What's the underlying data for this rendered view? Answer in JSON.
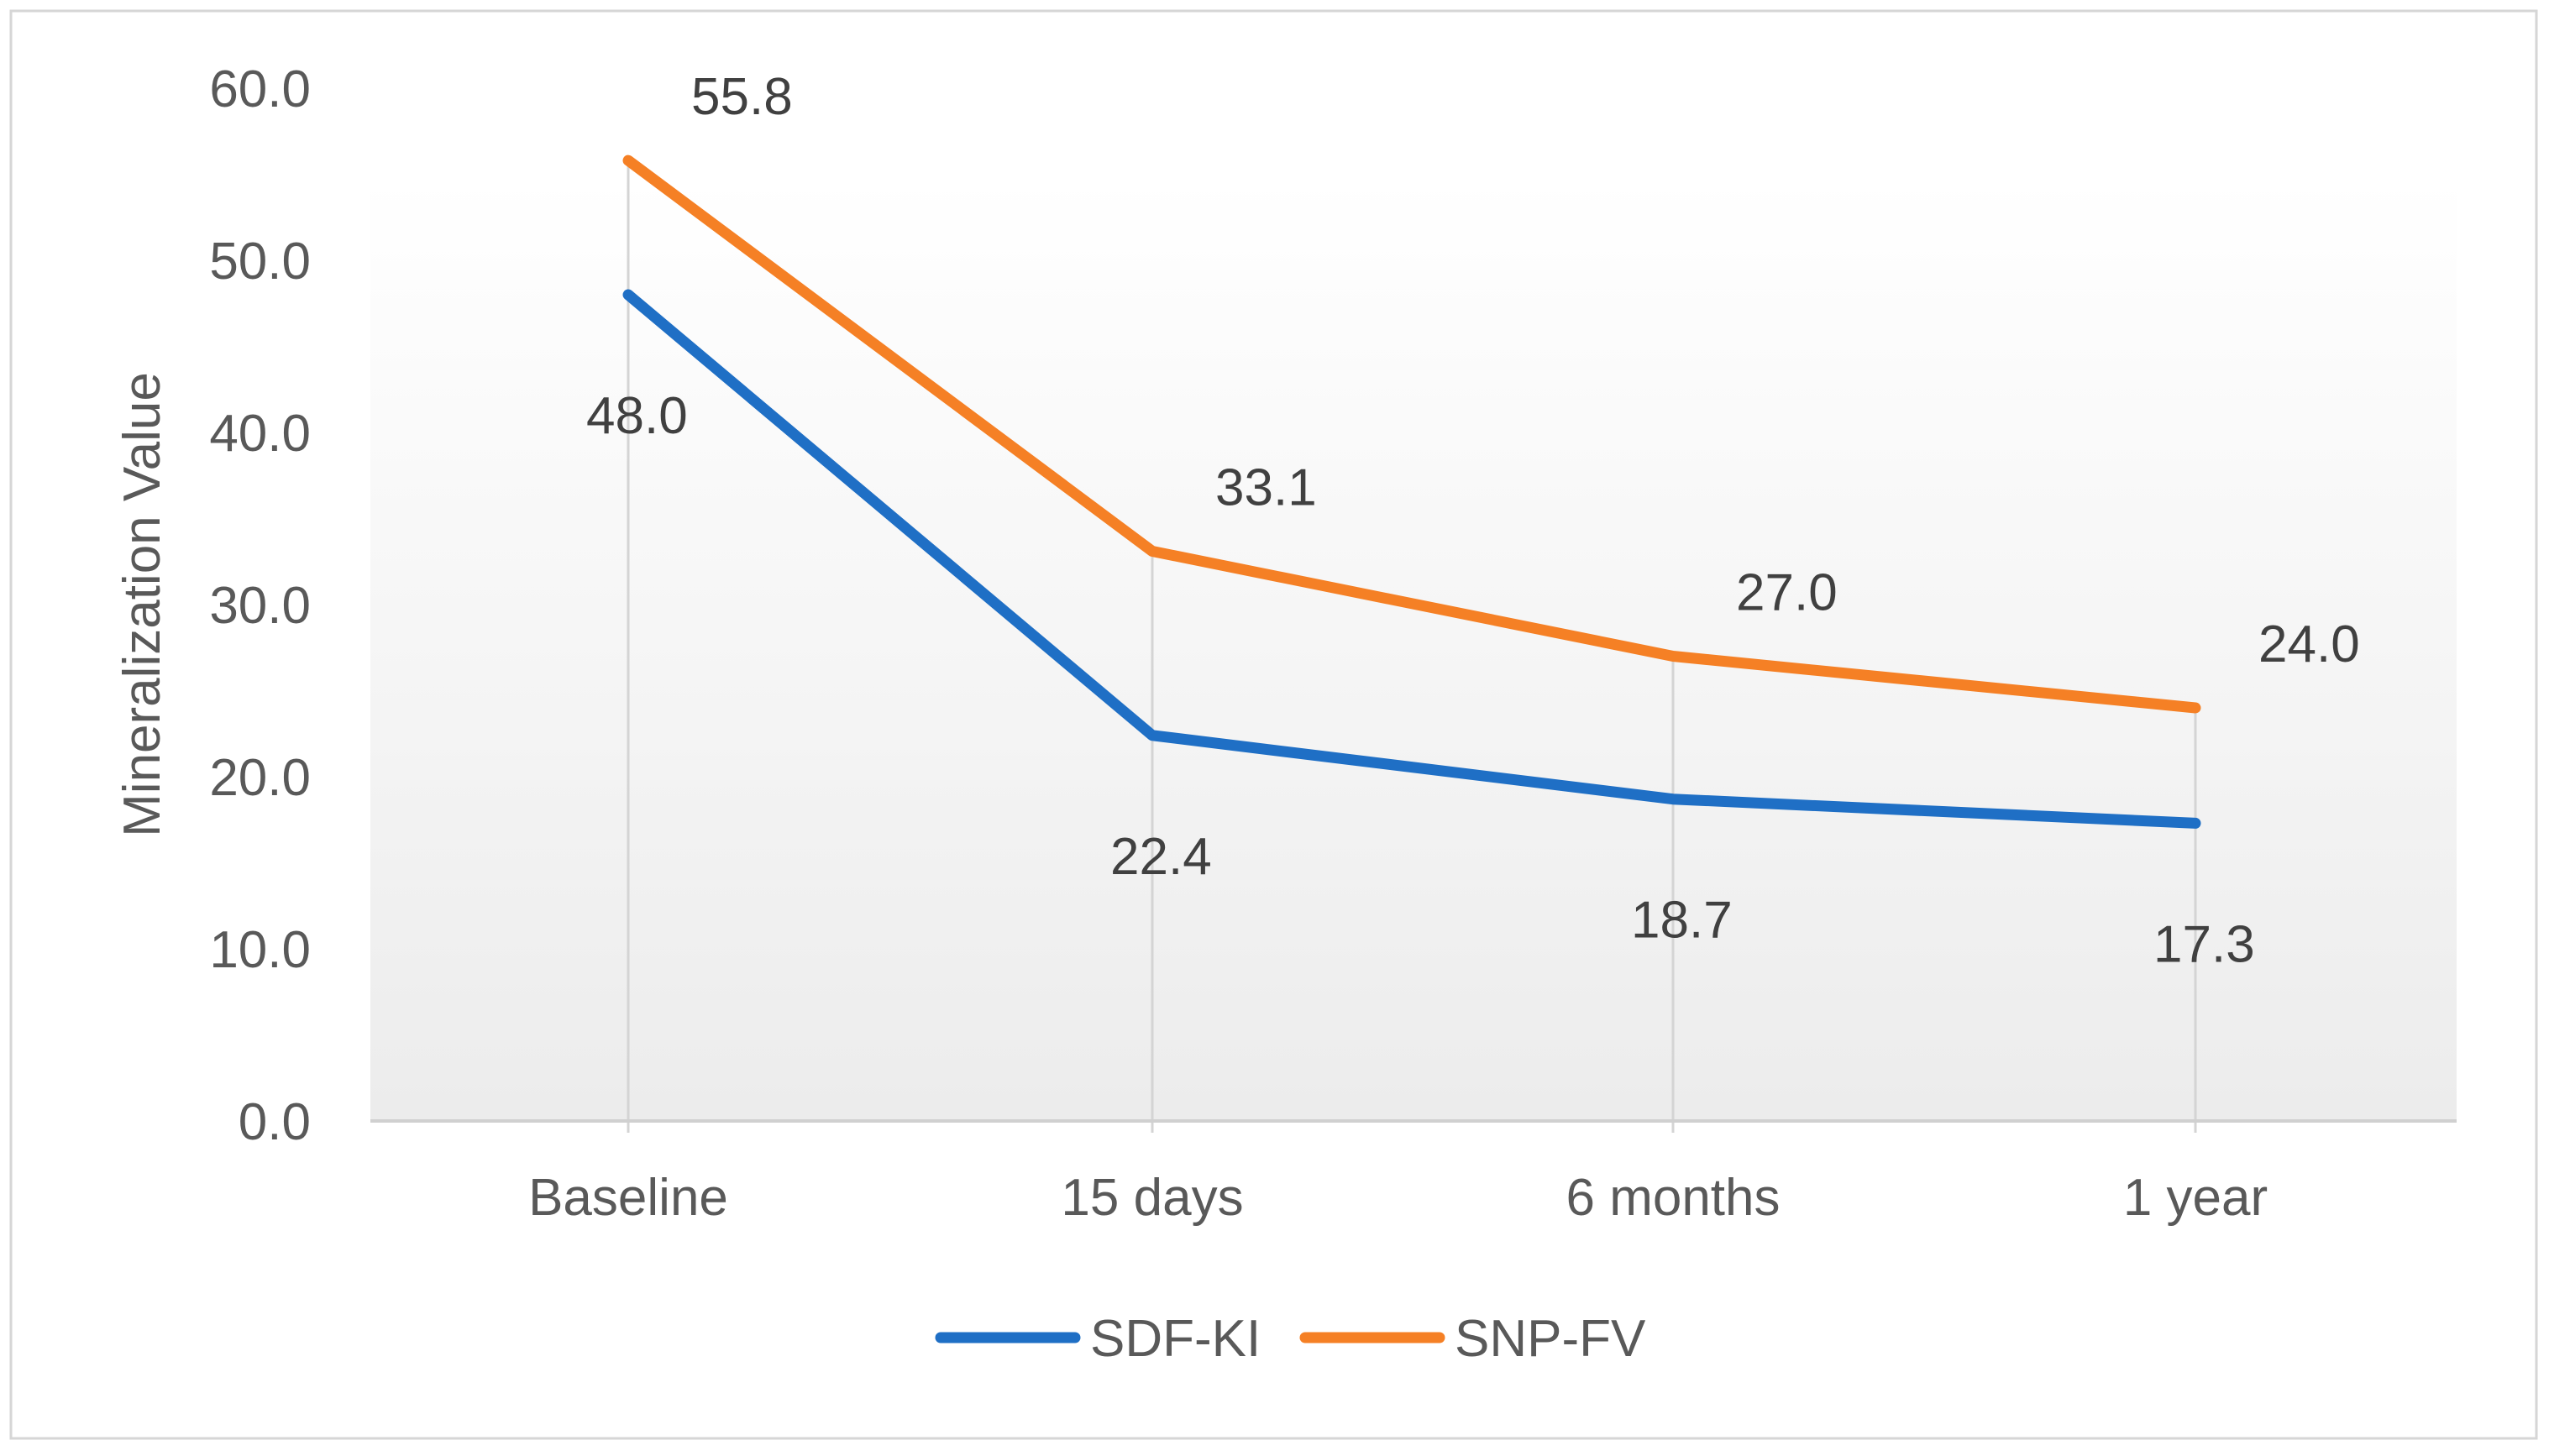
{
  "chart_data": {
    "type": "line",
    "title": "",
    "xlabel": "",
    "ylabel": "Mineralization Value",
    "categories": [
      "Baseline",
      "15 days",
      "6 months",
      "1 year"
    ],
    "yticks": [
      "0.0",
      "10.0",
      "20.0",
      "30.0",
      "40.0",
      "50.0",
      "60.0"
    ],
    "ylim": [
      0,
      60
    ],
    "grid": "vertical",
    "legend_position": "bottom",
    "series": [
      {
        "name": "SDF-KI",
        "color": "#1f6fc5",
        "values": [
          48.0,
          22.4,
          18.7,
          17.3
        ],
        "labels": [
          "48.0",
          "22.4",
          "18.7",
          "17.3"
        ],
        "label_position": "below"
      },
      {
        "name": "SNP-FV",
        "color": "#f58025",
        "values": [
          55.8,
          33.1,
          27.0,
          24.0
        ],
        "labels": [
          "55.8",
          "33.1",
          "27.0",
          "24.0"
        ],
        "label_position": "above-right"
      }
    ]
  }
}
